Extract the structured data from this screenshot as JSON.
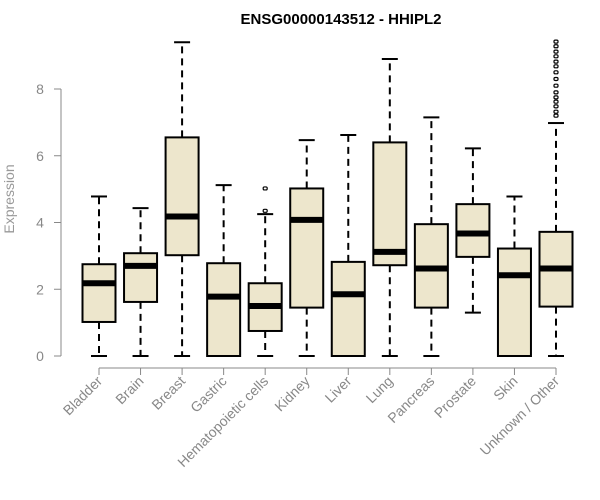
{
  "chart_data": {
    "type": "boxplot",
    "title": "ENSG00000143512 - HHIPL2",
    "xlabel": "",
    "ylabel": "Expression",
    "ylim": [
      0,
      9.6
    ],
    "yticks": [
      0,
      2,
      4,
      6,
      8
    ],
    "grid": false,
    "legend": "none",
    "box_fill": "#ede6cc",
    "categories": [
      "Bladder",
      "Brain",
      "Breast",
      "Gastric",
      "Hematopoietic cells",
      "Kidney",
      "Liver",
      "Lung",
      "Pancreas",
      "Prostate",
      "Skin",
      "Unknown / Other"
    ],
    "boxes": [
      {
        "min": 0,
        "q1": 1.02,
        "median": 2.18,
        "q3": 2.75,
        "max": 4.78,
        "outliers": []
      },
      {
        "min": 0,
        "q1": 1.62,
        "median": 2.7,
        "q3": 3.08,
        "max": 4.43,
        "outliers": []
      },
      {
        "min": 0,
        "q1": 3.02,
        "median": 4.18,
        "q3": 6.55,
        "max": 9.4,
        "outliers": []
      },
      {
        "min": 0,
        "q1": 0,
        "median": 1.78,
        "q3": 2.78,
        "max": 5.12,
        "outliers": []
      },
      {
        "min": 0,
        "q1": 0.75,
        "median": 1.5,
        "q3": 2.18,
        "max": 4.25,
        "outliers": [
          4.35,
          5.02
        ]
      },
      {
        "min": 0,
        "q1": 1.45,
        "median": 4.08,
        "q3": 5.02,
        "max": 6.47,
        "outliers": []
      },
      {
        "min": 0,
        "q1": 0,
        "median": 1.85,
        "q3": 2.82,
        "max": 6.62,
        "outliers": []
      },
      {
        "min": 0,
        "q1": 2.72,
        "median": 3.12,
        "q3": 6.4,
        "max": 8.9,
        "outliers": []
      },
      {
        "min": 0,
        "q1": 1.45,
        "median": 2.62,
        "q3": 3.95,
        "max": 7.15,
        "outliers": []
      },
      {
        "min": 1.3,
        "q1": 2.97,
        "median": 3.67,
        "q3": 4.55,
        "max": 6.22,
        "outliers": []
      },
      {
        "min": 0,
        "q1": 0,
        "median": 2.42,
        "q3": 3.22,
        "max": 4.78,
        "outliers": []
      },
      {
        "min": 0,
        "q1": 1.48,
        "median": 2.62,
        "q3": 3.72,
        "max": 6.98,
        "outliers": [
          7.2,
          7.32,
          7.48,
          7.62,
          7.75,
          7.9,
          8.1,
          8.3,
          8.5,
          8.68,
          8.82,
          8.98,
          9.12,
          9.28,
          9.42
        ]
      }
    ]
  }
}
